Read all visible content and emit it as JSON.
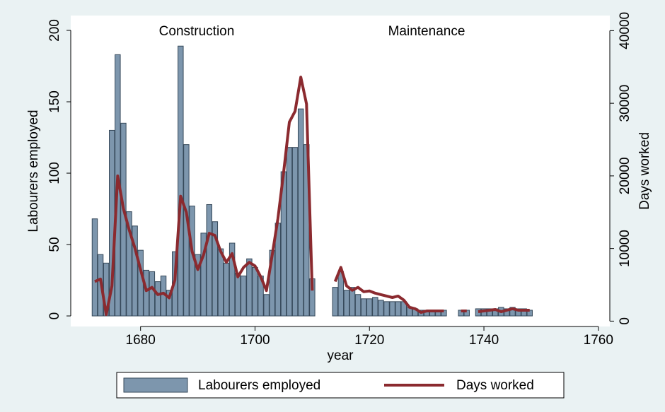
{
  "chart_data": {
    "type": "bar",
    "x": [
      1672,
      1673,
      1674,
      1675,
      1676,
      1677,
      1678,
      1679,
      1680,
      1681,
      1682,
      1683,
      1684,
      1685,
      1686,
      1687,
      1688,
      1689,
      1690,
      1691,
      1692,
      1693,
      1694,
      1695,
      1696,
      1697,
      1698,
      1699,
      1700,
      1701,
      1702,
      1703,
      1704,
      1705,
      1706,
      1707,
      1708,
      1709,
      1710,
      1711,
      1712,
      1713,
      1714,
      1715,
      1716,
      1717,
      1718,
      1719,
      1720,
      1721,
      1722,
      1723,
      1724,
      1725,
      1726,
      1727,
      1728,
      1729,
      1730,
      1731,
      1732,
      1733,
      1734,
      1735,
      1736,
      1737,
      1738,
      1739,
      1740,
      1741,
      1742,
      1743,
      1744,
      1745,
      1746,
      1747,
      1748
    ],
    "series": [
      {
        "name": "Labourers employed",
        "type": "bar",
        "color": "#7d96ad",
        "values": [
          68,
          43,
          37,
          130,
          183,
          135,
          73,
          63,
          46,
          32,
          31,
          24,
          28,
          18,
          45,
          189,
          120,
          77,
          43,
          58,
          78,
          66,
          47,
          37,
          51,
          30,
          28,
          40,
          34,
          28,
          15,
          46,
          65,
          101,
          118,
          118,
          145,
          120,
          26,
          null,
          null,
          null,
          20,
          31,
          18,
          20,
          15,
          12,
          12,
          13,
          11,
          10,
          10,
          10,
          10,
          6,
          5,
          4,
          4,
          4,
          4,
          4,
          null,
          null,
          4,
          4,
          null,
          5,
          5,
          5,
          5,
          6,
          5,
          6,
          5,
          5,
          4
        ]
      },
      {
        "name": "Days worked",
        "type": "line",
        "axis": "y2",
        "color": "#8b2a2f",
        "values": [
          5450,
          5800,
          900,
          4850,
          20000,
          15500,
          12600,
          10100,
          7100,
          4200,
          4650,
          3650,
          3850,
          3200,
          5650,
          17200,
          15000,
          9600,
          7100,
          9100,
          12100,
          11800,
          9600,
          8100,
          9300,
          6100,
          7400,
          8100,
          7600,
          6100,
          4200,
          9100,
          14100,
          20500,
          27400,
          28900,
          33600,
          29900,
          4200,
          null,
          null,
          null,
          5450,
          7400,
          4850,
          4250,
          4650,
          4050,
          4150,
          3850,
          3650,
          3450,
          3250,
          3450,
          2900,
          1900,
          1700,
          1200,
          1400,
          1400,
          1400,
          1400,
          null,
          null,
          1400,
          1400,
          null,
          1300,
          1400,
          1500,
          1600,
          1300,
          1500,
          1700,
          1500,
          1500,
          1500
        ]
      }
    ],
    "annotations": [
      "Construction",
      "Maintenance"
    ],
    "x_label": "year",
    "y_label": "Labourers employed",
    "y2_label": "Days worked",
    "xlim": [
      1667.8,
      1762
    ],
    "xticks": [
      1680,
      1700,
      1720,
      1740,
      1760
    ],
    "ylim": [
      -7.4,
      210.4
    ],
    "yticks": [
      0,
      50,
      100,
      150,
      200
    ],
    "y2lim": [
      -740,
      42080
    ],
    "y2ticks": [
      0,
      10000,
      20000,
      30000,
      40000
    ],
    "grid": false,
    "legend": "bottom"
  }
}
